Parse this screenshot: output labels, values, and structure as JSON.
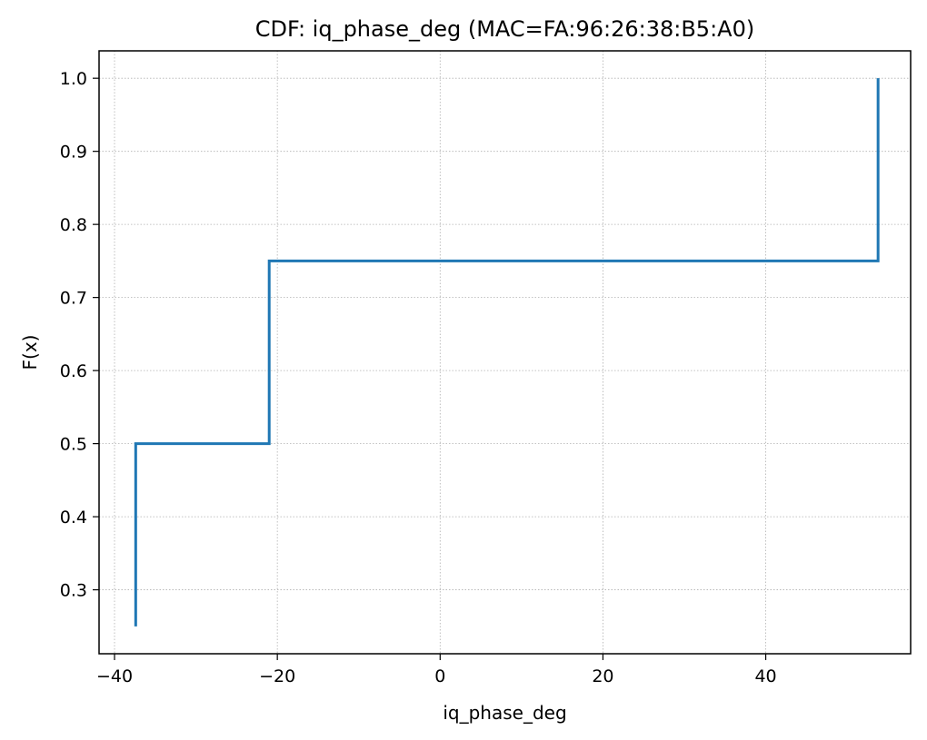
{
  "chart_data": {
    "type": "line",
    "step": true,
    "title": "CDF: iq_phase_deg (MAC=FA:96:26:38:B5:A0)",
    "xlabel": "iq_phase_deg",
    "ylabel": "F(x)",
    "xlim": [
      -41.9,
      57.8
    ],
    "ylim": [
      0.2125,
      1.0375
    ],
    "x_ticks": [
      -40,
      -20,
      0,
      20,
      40
    ],
    "x_tick_labels": [
      "−40",
      "−20",
      "0",
      "20",
      "40"
    ],
    "y_ticks": [
      0.3,
      0.4,
      0.5,
      0.6,
      0.7,
      0.8,
      0.9,
      1.0
    ],
    "y_tick_labels": [
      "0.3",
      "0.4",
      "0.5",
      "0.6",
      "0.7",
      "0.8",
      "0.9",
      "1.0"
    ],
    "grid": true,
    "series": [
      {
        "color": "#1f77b4",
        "x": [
          -37.4,
          -37.4,
          -21.0,
          -21.0,
          53.8,
          53.8
        ],
        "y": [
          0.25,
          0.5,
          0.5,
          0.75,
          0.75,
          1.0
        ]
      }
    ]
  }
}
